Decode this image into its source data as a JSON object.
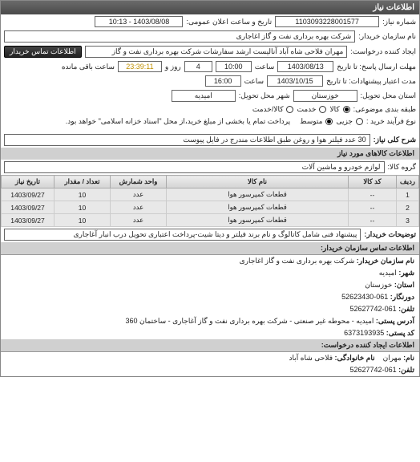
{
  "header": {
    "title": "اطلاعات نیاز"
  },
  "labels": {
    "num": "شماره نیاز:",
    "pubdate": "تاریخ و ساعت اعلان عمومی:",
    "org": "نام سازمان خریدار:",
    "requester": "ایجاد کننده درخواست:",
    "contact_btn": "اطلاعات تماس خریدار",
    "deadline": "مهلت ارسال پاسخ: تا تاریخ",
    "time_lbl": "ساعت",
    "days_lbl": "روز و",
    "remain_lbl": "ساعت باقی مانده",
    "validity": "مدت اعتبار پیشنهادات: تا تاریخ",
    "province": "استان محل تحویل:",
    "city": "شهر محل تحویل:",
    "pack": "طبقه بندی موضوعی:",
    "pack_goods": "کالا",
    "pack_serv": "خدمت",
    "pack_both": "کالا/خدمت",
    "buy": "نوع فرآیند خرید :",
    "buy_partial": "جزیی",
    "buy_med": "متوسط",
    "buy_note": "پرداخت تمام یا بخشی از مبلغ خرید،از محل \"اسناد خزانه اسلامی\" خواهد بود.",
    "desc": "شرح کلی نیاز:",
    "group": "گروه کالا:",
    "buyer_notes": "توضیحات خریدار:",
    "contact_hdr": "اطلاعات تماس سازمان خریدار:",
    "org_name_lbl": "نام سازمان خریدار:",
    "city_lbl": "شهر:",
    "province_lbl": "استان:",
    "phone_lbl": "دورنگار:",
    "fax_lbl": "تلفن:",
    "addr_lbl": "آدرس پستی:",
    "post_lbl": "کد پستی:",
    "req_hdr": "اطلاعات ایجاد کننده درخواست:",
    "name_lbl": "نام:",
    "family_lbl": "نام خانوادگی:",
    "tel_lbl": "تلفن:"
  },
  "fields": {
    "num": "1103093228001577",
    "pubdate": "1403/08/08 - 10:13",
    "org": "شرکت بهره برداری نفت و گاز اغاجاری",
    "requester": "مهران فلاحی شاه آباد آنالیست ارشد سفارشات شرکت بهره برداری نفت و گاز",
    "deadline_date": "1403/08/13",
    "deadline_time": "10:00",
    "days": "4",
    "remain": "23:39:11",
    "validity_date": "1403/10/15",
    "validity_time": "16:00",
    "province": "خوزستان",
    "city": "امیدیه",
    "desc": "30 عدد فیلتر هوا و روغن طبق اطلاعات مندرج در فایل پیوست",
    "group": "لوازم خودرو و ماشین آلات",
    "buyer_notes": "پیشنهاد فنی شامل کاتالوگ و نام برند فیلتر و دیتا شیت-پرداخت اعتباری تحویل درب انبار آغاجاری"
  },
  "table": {
    "cols": [
      "ردیف",
      "کد کالا",
      "نام کالا",
      "واحد شمارش",
      "تعداد / مقدار",
      "تاریخ نیاز"
    ],
    "rows": [
      [
        "1",
        "--",
        "قطعات کمپرسور هوا",
        "عدد",
        "10",
        "1403/09/27"
      ],
      [
        "2",
        "--",
        "قطعات کمپرسور هوا",
        "عدد",
        "10",
        "1403/09/27"
      ],
      [
        "3",
        "--",
        "قطعات کمپرسور هوا",
        "عدد",
        "10",
        "1403/09/27"
      ]
    ]
  },
  "sections": {
    "goods": "اطلاعات کالاهای مورد نیاز"
  },
  "contact": {
    "org": "شرکت بهره برداری نفت و گاز اغاجاری",
    "city": "امیدیه",
    "province": "خوزستان",
    "phone": "061-52623430",
    "fax": "061-52627742",
    "addr": "امیدیه - محوطه غیر صنعتی - شرکت بهره برداری نفت و گاز آغاجاری - ساختمان 360",
    "post": "6373193935",
    "name": "مهران",
    "family": "فلاحی شاه آباد",
    "tel": "061-52627742"
  }
}
